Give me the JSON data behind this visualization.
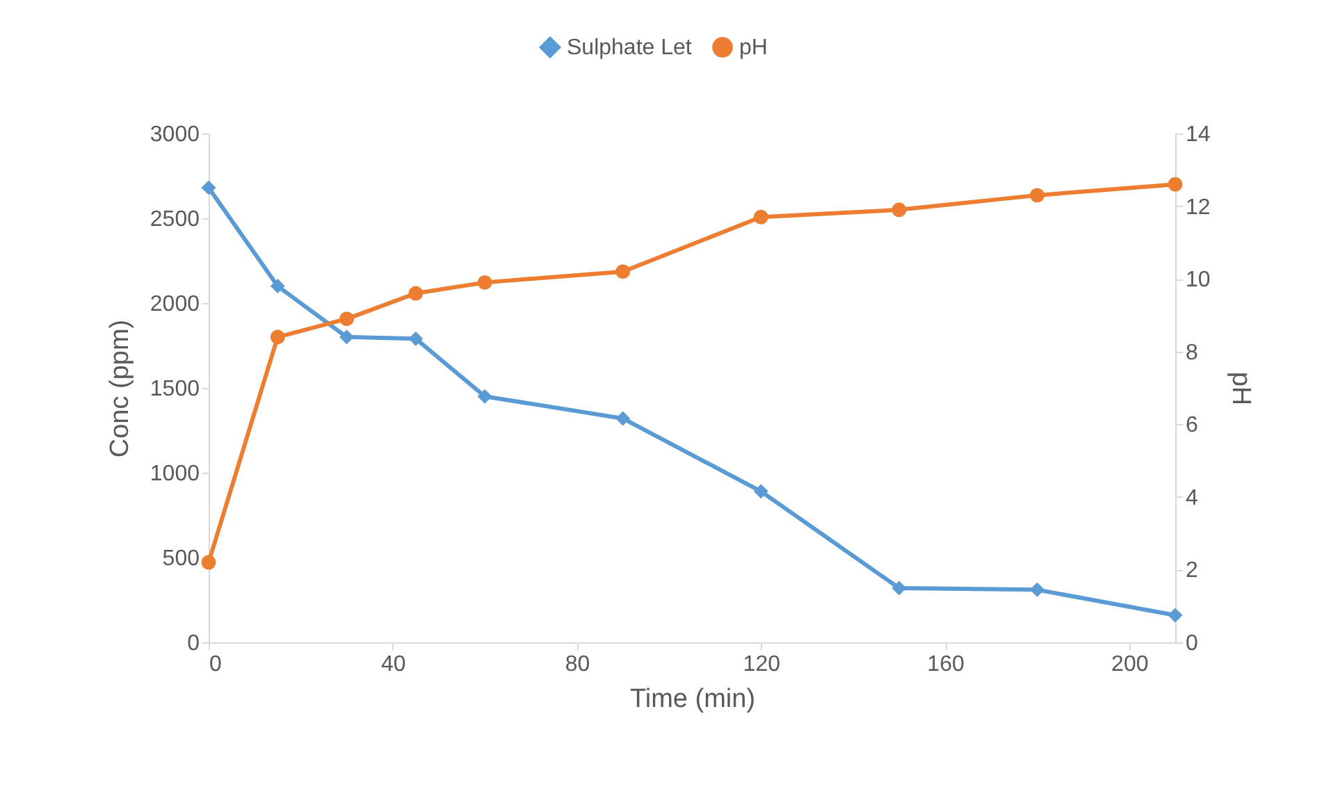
{
  "chart_data": {
    "type": "line",
    "xlabel": "Time (min)",
    "ylabel": "Conc (ppm)",
    "y2label": "pH",
    "x": [
      0,
      15,
      30,
      45,
      60,
      90,
      120,
      150,
      180,
      210
    ],
    "series": [
      {
        "name": "Sulphate Let",
        "color": "#5b9bd5",
        "marker": "diamond",
        "values": [
          2680,
          2100,
          1800,
          1790,
          1450,
          1320,
          890,
          320,
          310,
          160
        ]
      },
      {
        "name": "pH",
        "color": "#ed7d31",
        "marker": "circle",
        "axis": "y2",
        "values": [
          2.2,
          8.4,
          8.9,
          9.6,
          9.9,
          10.2,
          11.7,
          11.9,
          12.3,
          12.6
        ]
      }
    ],
    "xlim": [
      0,
      210
    ],
    "xticks": [
      0,
      40,
      80,
      120,
      160,
      200
    ],
    "ylim": [
      0,
      3000
    ],
    "yticks": [
      0,
      500,
      1000,
      1500,
      2000,
      2500,
      3000
    ],
    "y2lim": [
      0,
      14
    ],
    "y2ticks": [
      0,
      2,
      4,
      6,
      8,
      10,
      12,
      14
    ],
    "grid": false,
    "legend": "top",
    "line_style": "solid"
  }
}
